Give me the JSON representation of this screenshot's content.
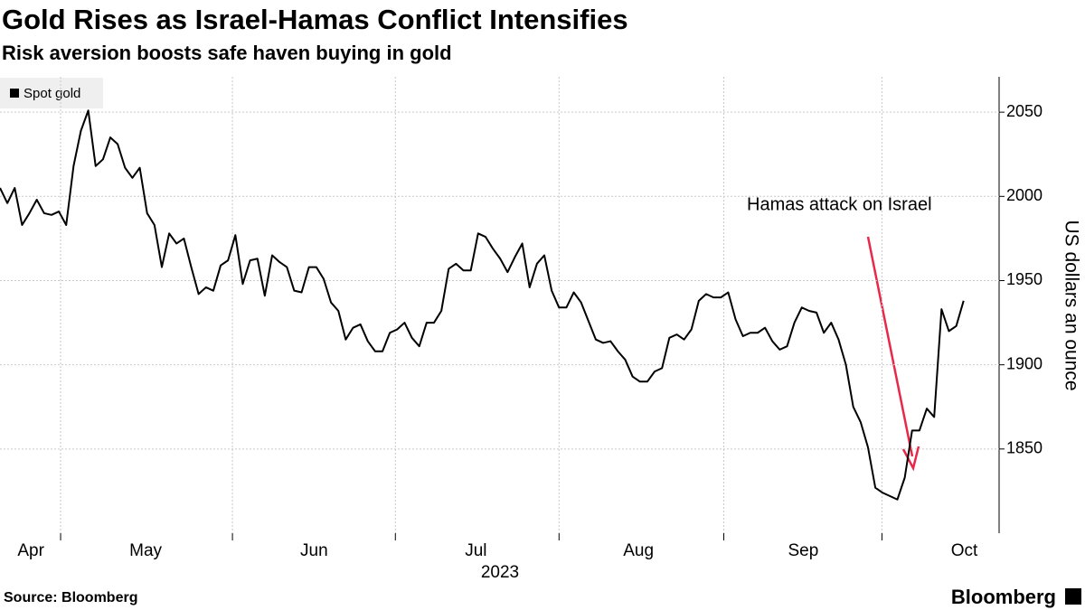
{
  "chart_data": {
    "type": "line",
    "title": "Gold Rises as Israel-Hamas Conflict Intensifies",
    "subtitle": "Risk aversion boosts safe haven buying in gold",
    "source": "Source: Bloomberg",
    "brand": "Bloomberg",
    "y_label": "US dollars an ounce",
    "x_label": "2023",
    "annotation": "Hamas attack on Israel",
    "series": [
      {
        "name": "Spot gold",
        "color": "#000000",
        "values": [
          2005,
          1996,
          2005,
          1983,
          1990,
          1998,
          1990,
          1989,
          1991,
          1983,
          2018,
          2039,
          2051,
          2018,
          2022,
          2035,
          2031,
          2017,
          2011,
          2017,
          1990,
          1983,
          1958,
          1978,
          1972,
          1975,
          1958,
          1942,
          1946,
          1944,
          1959,
          1962,
          1977,
          1948,
          1962,
          1963,
          1941,
          1965,
          1961,
          1958,
          1944,
          1943,
          1958,
          1958,
          1951,
          1937,
          1932,
          1915,
          1922,
          1924,
          1914,
          1908,
          1908,
          1919,
          1921,
          1925,
          1916,
          1911,
          1925,
          1925,
          1932,
          1957,
          1960,
          1956,
          1956,
          1978,
          1976,
          1969,
          1963,
          1955,
          1964,
          1972,
          1946,
          1960,
          1965,
          1944,
          1934,
          1934,
          1943,
          1937,
          1926,
          1915,
          1913,
          1914,
          1908,
          1903,
          1893,
          1890,
          1890,
          1896,
          1898,
          1916,
          1918,
          1915,
          1921,
          1938,
          1942,
          1940,
          1940,
          1943,
          1927,
          1917,
          1919,
          1919,
          1922,
          1914,
          1909,
          1911,
          1925,
          1934,
          1932,
          1931,
          1919,
          1925,
          1915,
          1900,
          1875,
          1866,
          1851,
          1827,
          1824,
          1822,
          1820,
          1833,
          1861,
          1861,
          1874,
          1869,
          1933,
          1920,
          1923,
          1938
        ]
      }
    ],
    "xlim": [
      0,
      133
    ],
    "xticks": [
      {
        "value": 4.2,
        "label": "Apr"
      },
      {
        "value": 19.8,
        "label": "May"
      },
      {
        "value": 42.7,
        "label": "Jun"
      },
      {
        "value": 64.7,
        "label": "Jul"
      },
      {
        "value": 86.8,
        "label": "Aug"
      },
      {
        "value": 109.2,
        "label": "Sep"
      },
      {
        "value": 131.1,
        "label": "Oct"
      }
    ],
    "xgrid": [
      8.24,
      31.6,
      53.75,
      76.0,
      98.4,
      119.9
    ],
    "ylim": [
      1800,
      2071
    ],
    "yticks": [
      1850,
      1900,
      1950,
      2000,
      2050
    ],
    "grid": true
  }
}
